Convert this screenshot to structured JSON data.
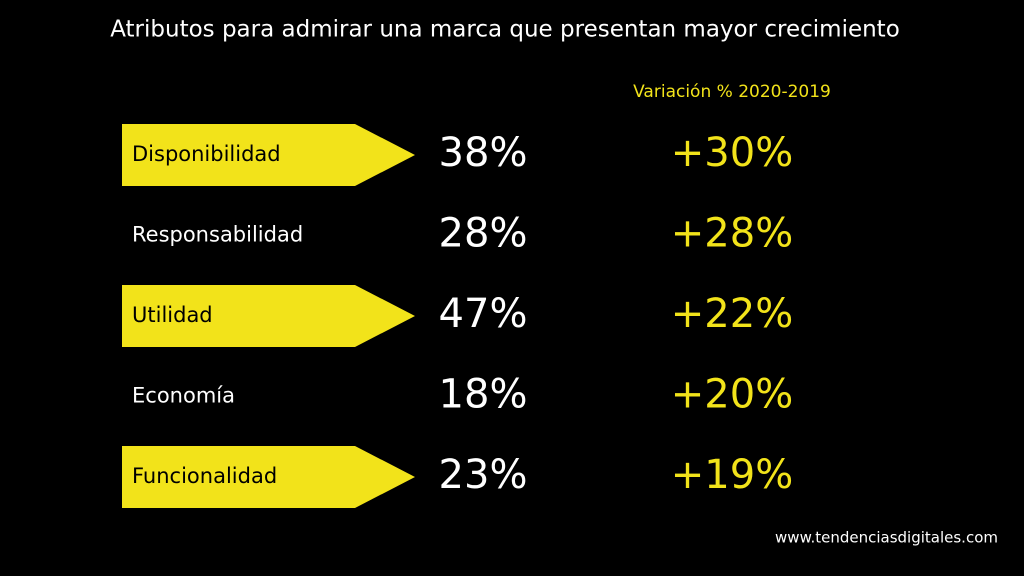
{
  "title": "Atributos para admirar una marca que presentan mayor crecimiento",
  "column_header": "Variación % 2020-2019",
  "rows": [
    {
      "label": "Disponibilidad",
      "value": "38%",
      "change": "+30%",
      "highlight": true
    },
    {
      "label": "Responsabilidad",
      "value": "28%",
      "change": "+28%",
      "highlight": false
    },
    {
      "label": "Utilidad",
      "value": "47%",
      "change": "+22%",
      "highlight": true
    },
    {
      "label": "Economía",
      "value": "18%",
      "change": "+20%",
      "highlight": false
    },
    {
      "label": "Funcionalidad",
      "value": "23%",
      "change": "+19%",
      "highlight": true
    }
  ],
  "source": "www.tendenciasdigitales.com"
}
